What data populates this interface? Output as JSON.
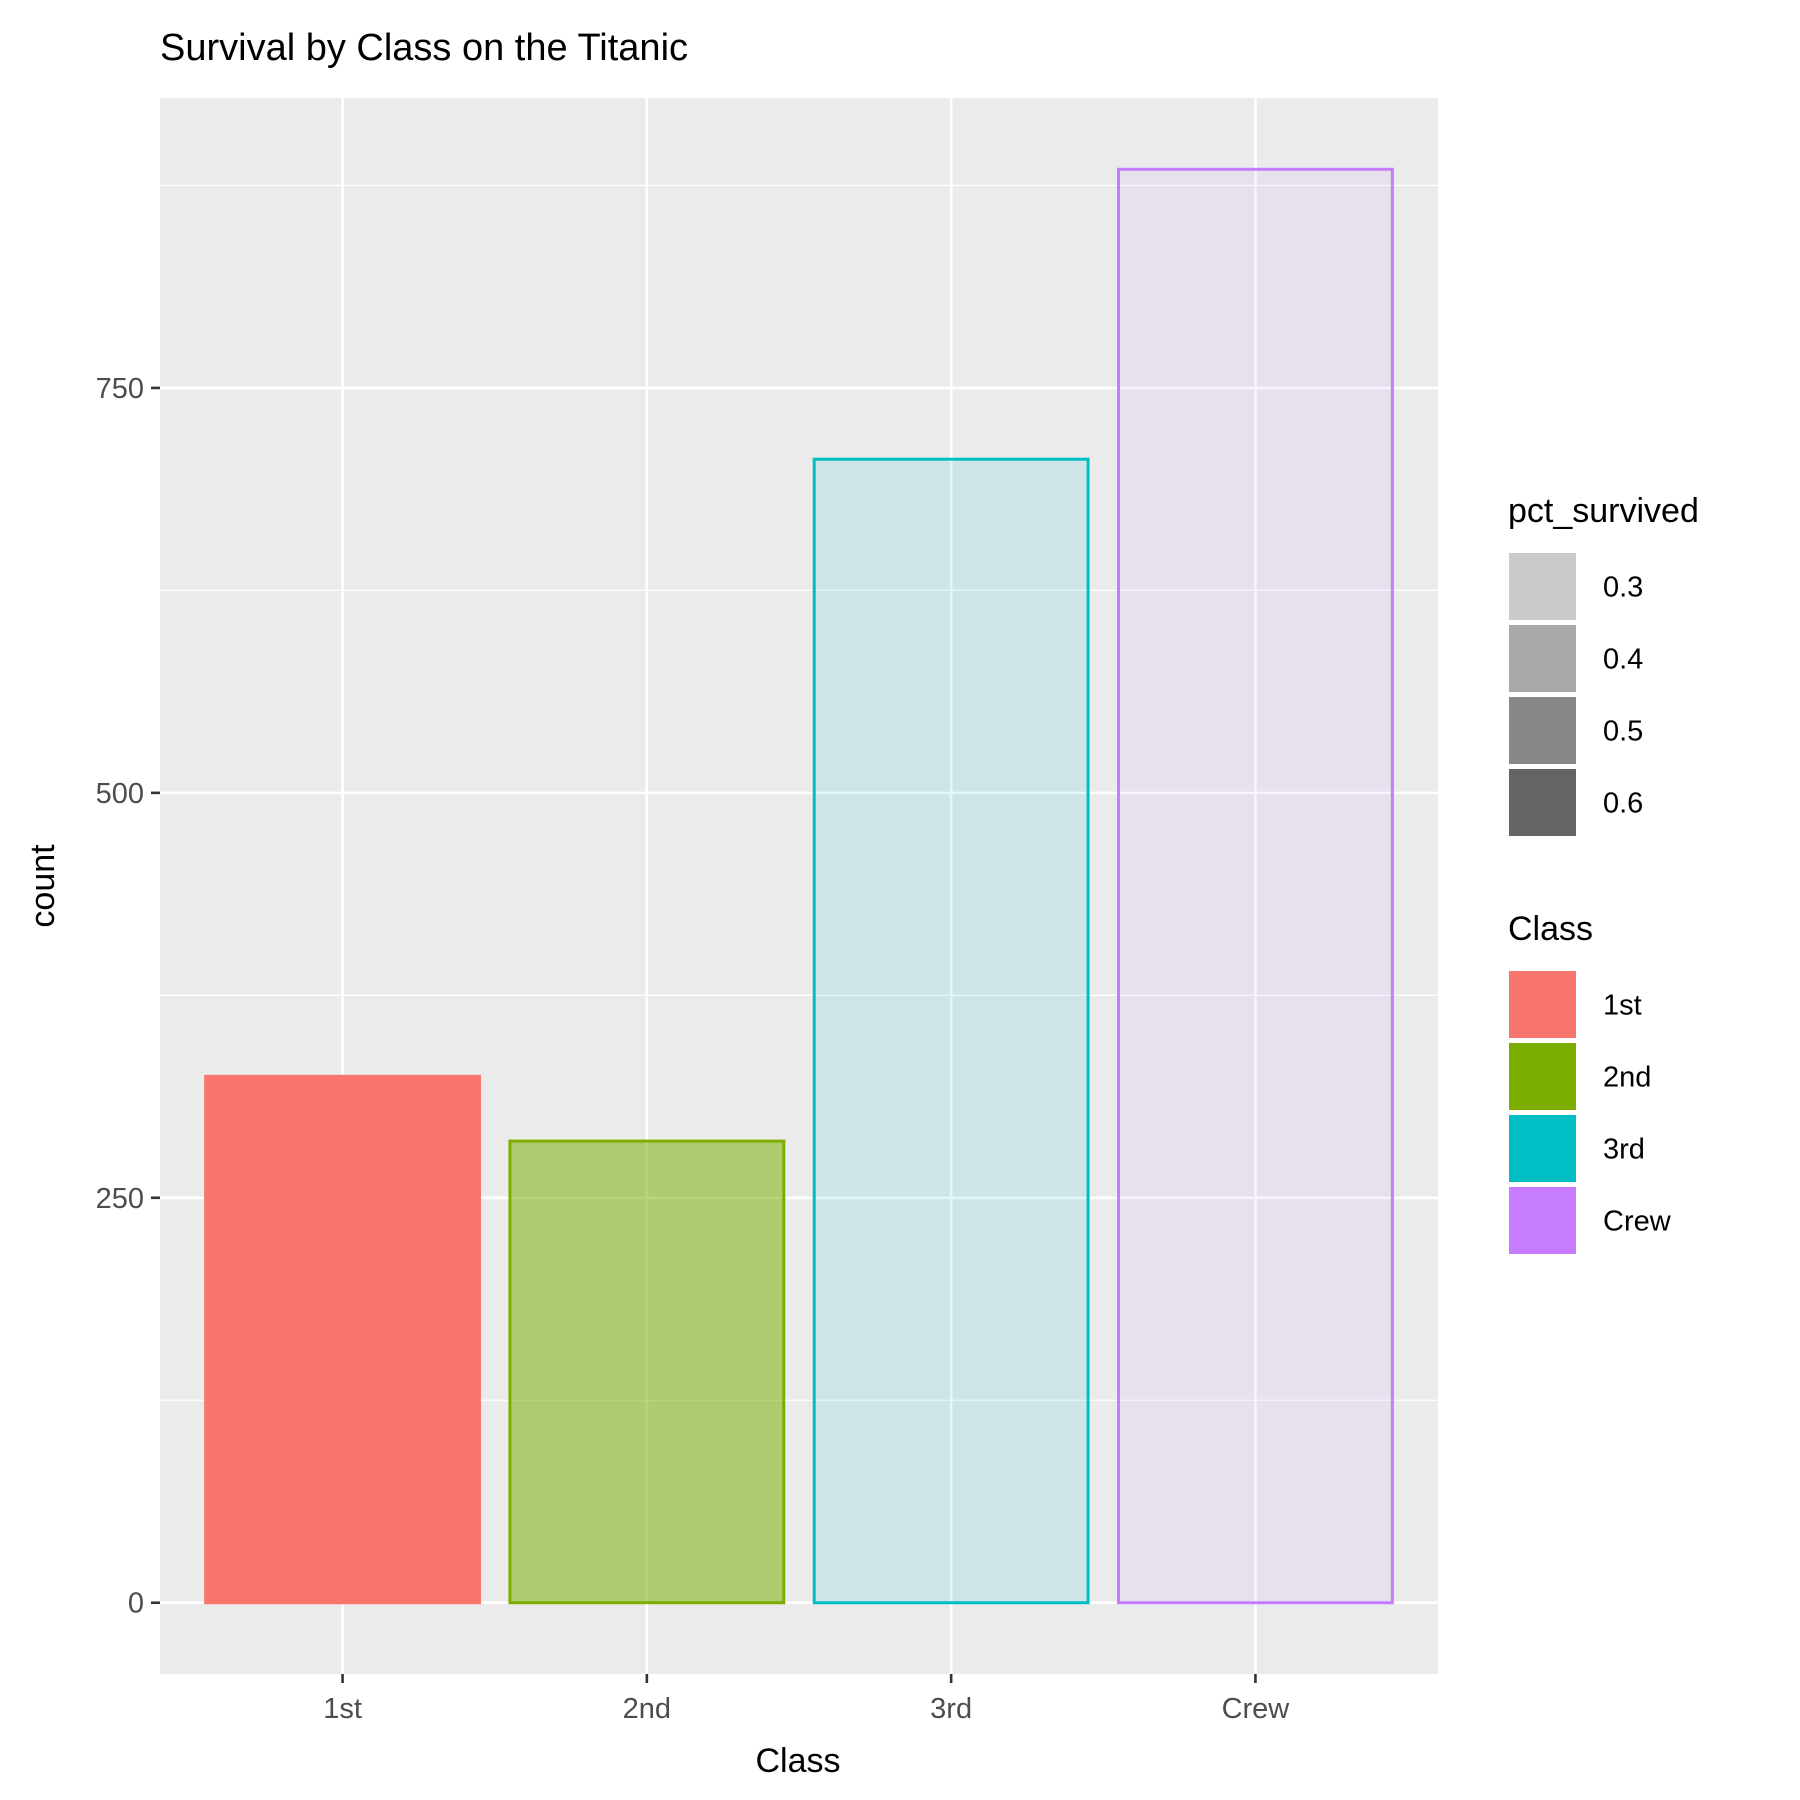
{
  "chart_data": {
    "type": "bar",
    "title": "Survival by Class on the Titanic",
    "xlabel": "Class",
    "ylabel": "count",
    "categories": [
      "1st",
      "2nd",
      "3rd",
      "Crew"
    ],
    "values": [
      325,
      285,
      706,
      885
    ],
    "pct_survived": [
      0.62,
      0.42,
      0.25,
      0.24
    ],
    "colors": [
      "#F8766D",
      "#7CAE00",
      "#00BFC4",
      "#C77CFF"
    ],
    "ylim": [
      -44,
      929
    ],
    "yticks": [
      0,
      250,
      500,
      750
    ],
    "ytick_labels": [
      "0",
      "250",
      "500",
      "750"
    ],
    "grid": true,
    "panel_background": "#EBEBEB",
    "legend_position": "right",
    "legends": [
      {
        "title": "pct_survived",
        "keys": [
          {
            "label": "0.3",
            "color": "#CBCBCB"
          },
          {
            "label": "0.4",
            "color": "#A8A8A8"
          },
          {
            "label": "0.5",
            "color": "#878787"
          },
          {
            "label": "0.6",
            "color": "#646464"
          }
        ]
      },
      {
        "title": "Class",
        "keys": [
          {
            "label": "1st",
            "color": "#F8766D"
          },
          {
            "label": "2nd",
            "color": "#7CAE00"
          },
          {
            "label": "3rd",
            "color": "#00BFC4"
          },
          {
            "label": "Crew",
            "color": "#C77CFF"
          }
        ]
      }
    ]
  }
}
